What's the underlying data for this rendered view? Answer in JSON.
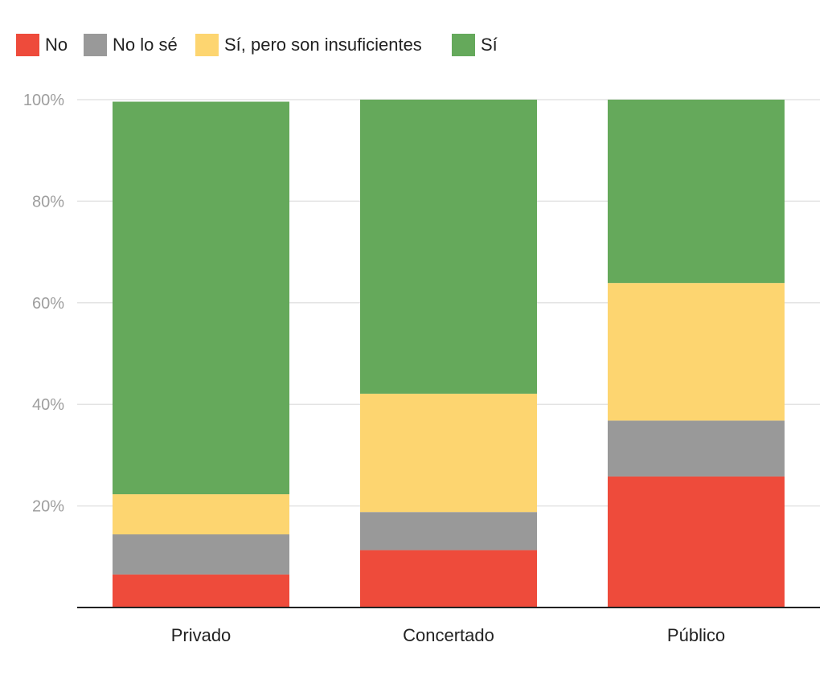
{
  "chart_data": {
    "type": "bar",
    "stacked": true,
    "normalized": true,
    "categories": [
      "Privado",
      "Concertado",
      "Público"
    ],
    "series": [
      {
        "name": "No",
        "color": "#ee4b3b",
        "values": [
          6.5,
          11.3,
          25.8
        ]
      },
      {
        "name": "No lo sé",
        "color": "#999999",
        "values": [
          7.9,
          7.5,
          11.0
        ]
      },
      {
        "name": "Sí, pero son insuficientes",
        "color": "#fdd570",
        "values": [
          7.9,
          23.3,
          27.1
        ]
      },
      {
        "name": "Sí",
        "color": "#65a95b",
        "values": [
          77.3,
          57.9,
          36.1
        ]
      }
    ],
    "yticks": [
      "20%",
      "40%",
      "60%",
      "80%",
      "100%"
    ],
    "ytick_values": [
      20,
      40,
      60,
      80,
      100
    ],
    "ylim": [
      0,
      100
    ],
    "legend_position": "top-left",
    "grid": true,
    "title": "",
    "xlabel": "",
    "ylabel": ""
  }
}
